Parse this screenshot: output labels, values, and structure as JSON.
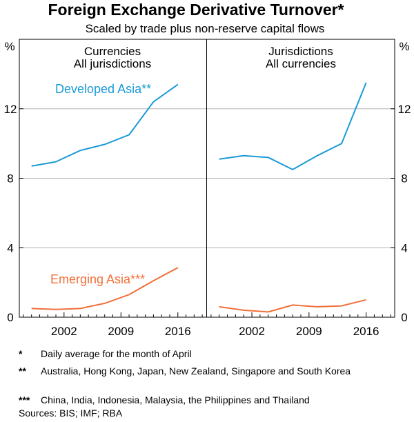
{
  "title": "Foreign Exchange Derivative Turnover*",
  "subtitle": "Scaled by trade plus non-reserve capital flows",
  "unit_left": "%",
  "unit_right": "%",
  "colors": {
    "developed": "#1a9ad6",
    "emerging": "#f0703a",
    "grid": "#b3b3b3",
    "axis": "#000000"
  },
  "chart_data": [
    {
      "type": "line",
      "panel": "left",
      "title": "Currencies",
      "subtitle": "All jurisdictions",
      "x": [
        1998,
        2001,
        2004,
        2007,
        2010,
        2013,
        2016
      ],
      "x_ticks": [
        "2002",
        "2009",
        "2016"
      ],
      "y_ticks": [
        "0",
        "4",
        "8",
        "12"
      ],
      "xlim": [
        1996.5,
        2019.5
      ],
      "ylim": [
        0,
        16
      ],
      "series": [
        {
          "name": "Developed Asia**",
          "color_key": "developed",
          "values": [
            8.7,
            8.95,
            9.6,
            9.95,
            10.5,
            12.4,
            13.4
          ]
        },
        {
          "name": "Emerging Asia***",
          "color_key": "emerging",
          "values": [
            0.5,
            0.45,
            0.5,
            0.8,
            1.3,
            2.1,
            2.85
          ]
        }
      ]
    },
    {
      "type": "line",
      "panel": "right",
      "title": "Jurisdictions",
      "subtitle": "All currencies",
      "x": [
        1998,
        2001,
        2004,
        2007,
        2010,
        2013,
        2016
      ],
      "x_ticks": [
        "2002",
        "2009",
        "2016"
      ],
      "y_ticks": [
        "0",
        "4",
        "8",
        "12"
      ],
      "xlim": [
        1996.5,
        2019.5
      ],
      "ylim": [
        0,
        16
      ],
      "series": [
        {
          "name": "Developed Asia**",
          "color_key": "developed",
          "values": [
            9.1,
            9.3,
            9.2,
            8.5,
            9.3,
            10.0,
            13.5
          ]
        },
        {
          "name": "Emerging Asia***",
          "color_key": "emerging",
          "values": [
            0.6,
            0.4,
            0.3,
            0.7,
            0.6,
            0.65,
            1.0
          ]
        }
      ]
    }
  ],
  "footnotes": [
    {
      "mark": "*",
      "text": "Daily average for the month of April"
    },
    {
      "mark": "**",
      "text": "Australia, Hong Kong, Japan, New Zealand, Singapore and South Korea"
    },
    {
      "mark": "***",
      "text": "China, India, Indonesia, Malaysia, the Philippines and Thailand"
    }
  ],
  "sources": "Sources: BIS; IMF; RBA"
}
